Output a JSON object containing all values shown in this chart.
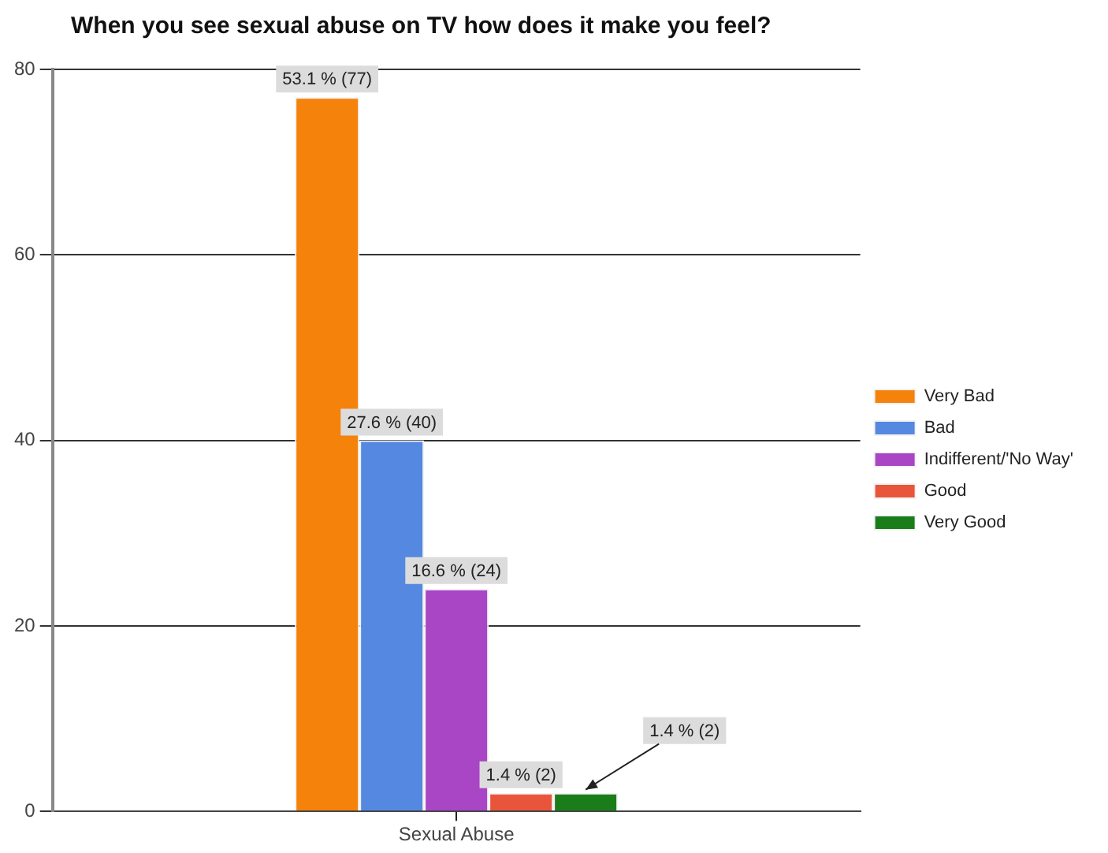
{
  "chart_data": {
    "type": "bar",
    "title": "When you see sexual abuse on TV how does it make you feel?",
    "categories": [
      "Sexual Abuse"
    ],
    "series": [
      {
        "name": "Very Bad",
        "color": "#f5820a",
        "values": [
          77
        ],
        "value_labels": [
          "53.1 % (77)"
        ]
      },
      {
        "name": "Bad",
        "color": "#5588e0",
        "values": [
          40
        ],
        "value_labels": [
          "27.6 % (40)"
        ]
      },
      {
        "name": "Indifferent/'No Way'",
        "color": "#a846c6",
        "values": [
          24
        ],
        "value_labels": [
          "16.6 % (24)"
        ]
      },
      {
        "name": "Good",
        "color": "#e8553a",
        "values": [
          2
        ],
        "value_labels": [
          "1.4 % (2)"
        ]
      },
      {
        "name": "Very Good",
        "color": "#1a7d1a",
        "values": [
          2
        ],
        "value_labels": [
          "1.4 % (2)"
        ]
      }
    ],
    "ylim": [
      0,
      80
    ],
    "yticks": [
      0,
      20,
      40,
      60,
      80
    ],
    "grid": "y",
    "legend": "right"
  }
}
